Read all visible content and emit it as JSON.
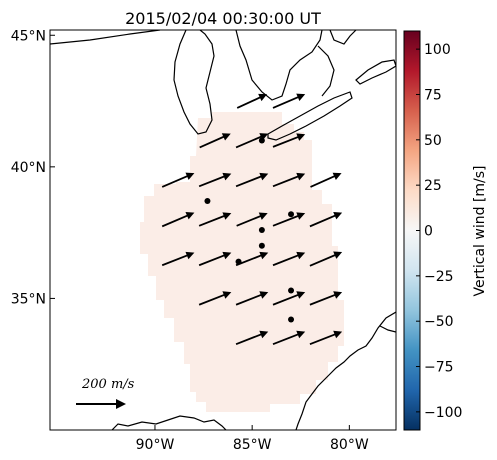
{
  "title": "2015/02/04 00:30:00 UT",
  "map": {
    "lat_ticks": [
      {
        "lat": 45,
        "label": "45°N"
      },
      {
        "lat": 40,
        "label": "40°N"
      },
      {
        "lat": 35,
        "label": "35°N"
      }
    ],
    "lon_ticks": [
      {
        "lon": -90,
        "label": "90°W"
      },
      {
        "lon": -85,
        "label": "85°W"
      },
      {
        "lon": -80,
        "label": "80°W"
      }
    ],
    "extent": {
      "lon_min": -95.4,
      "lon_max": -77.6,
      "lat_min": 30.0,
      "lat_max": 45.2
    },
    "land_color": "#ffffff",
    "coast_color": "#000000",
    "field_color": "#fbede7"
  },
  "scale": {
    "label": "200 m/s",
    "value": 200
  },
  "wind_vectors": [
    {
      "lon": -85.0,
      "lat": 42.5,
      "u": 130,
      "v": 60
    },
    {
      "lon": -83.1,
      "lat": 42.5,
      "u": 140,
      "v": 60
    },
    {
      "lon": -86.9,
      "lat": 41.0,
      "u": 135,
      "v": 60
    },
    {
      "lon": -85.0,
      "lat": 41.0,
      "u": 140,
      "v": 60
    },
    {
      "lon": -83.1,
      "lat": 41.0,
      "u": 140,
      "v": 55
    },
    {
      "lon": -88.8,
      "lat": 39.5,
      "u": 140,
      "v": 60
    },
    {
      "lon": -86.9,
      "lat": 39.5,
      "u": 140,
      "v": 55
    },
    {
      "lon": -85.0,
      "lat": 39.5,
      "u": 140,
      "v": 55
    },
    {
      "lon": -83.1,
      "lat": 39.5,
      "u": 140,
      "v": 55
    },
    {
      "lon": -81.2,
      "lat": 39.5,
      "u": 135,
      "v": 60
    },
    {
      "lon": -88.8,
      "lat": 38.0,
      "u": 140,
      "v": 60
    },
    {
      "lon": -86.9,
      "lat": 38.0,
      "u": 140,
      "v": 55
    },
    {
      "lon": -85.0,
      "lat": 38.0,
      "u": 135,
      "v": 55
    },
    {
      "lon": -83.1,
      "lat": 38.0,
      "u": 140,
      "v": 55
    },
    {
      "lon": -81.2,
      "lat": 38.0,
      "u": 140,
      "v": 60
    },
    {
      "lon": -88.8,
      "lat": 36.5,
      "u": 140,
      "v": 55
    },
    {
      "lon": -86.9,
      "lat": 36.5,
      "u": 140,
      "v": 55
    },
    {
      "lon": -85.0,
      "lat": 36.5,
      "u": 140,
      "v": 55
    },
    {
      "lon": -83.1,
      "lat": 36.5,
      "u": 140,
      "v": 55
    },
    {
      "lon": -81.2,
      "lat": 36.5,
      "u": 140,
      "v": 60
    },
    {
      "lon": -86.9,
      "lat": 35.0,
      "u": 140,
      "v": 55
    },
    {
      "lon": -85.0,
      "lat": 35.0,
      "u": 140,
      "v": 55
    },
    {
      "lon": -83.1,
      "lat": 35.0,
      "u": 140,
      "v": 55
    },
    {
      "lon": -81.2,
      "lat": 35.0,
      "u": 140,
      "v": 55
    },
    {
      "lon": -85.0,
      "lat": 33.5,
      "u": 140,
      "v": 55
    },
    {
      "lon": -83.1,
      "lat": 33.5,
      "u": 140,
      "v": 55
    },
    {
      "lon": -81.2,
      "lat": 33.5,
      "u": 140,
      "v": 55
    }
  ],
  "stations": [
    {
      "lon": -84.5,
      "lat": 41.0
    },
    {
      "lon": -87.3,
      "lat": 38.7
    },
    {
      "lon": -83.0,
      "lat": 38.2
    },
    {
      "lon": -84.5,
      "lat": 37.6
    },
    {
      "lon": -84.5,
      "lat": 37.0
    },
    {
      "lon": -85.7,
      "lat": 36.4
    },
    {
      "lon": -83.0,
      "lat": 35.3
    },
    {
      "lon": -83.0,
      "lat": 34.2
    }
  ],
  "colorbar": {
    "label": "Vertical wind [m/s]",
    "min": -110,
    "max": 110,
    "ticks": [
      {
        "value": 100,
        "label": "100"
      },
      {
        "value": 75,
        "label": "75"
      },
      {
        "value": 50,
        "label": "50"
      },
      {
        "value": 25,
        "label": "25"
      },
      {
        "value": 0,
        "label": "0"
      },
      {
        "value": -25,
        "label": "−25"
      },
      {
        "value": -50,
        "label": "−50"
      },
      {
        "value": -75,
        "label": "−75"
      },
      {
        "value": -100,
        "label": "−100"
      }
    ],
    "colormap": "RdBu_r"
  }
}
